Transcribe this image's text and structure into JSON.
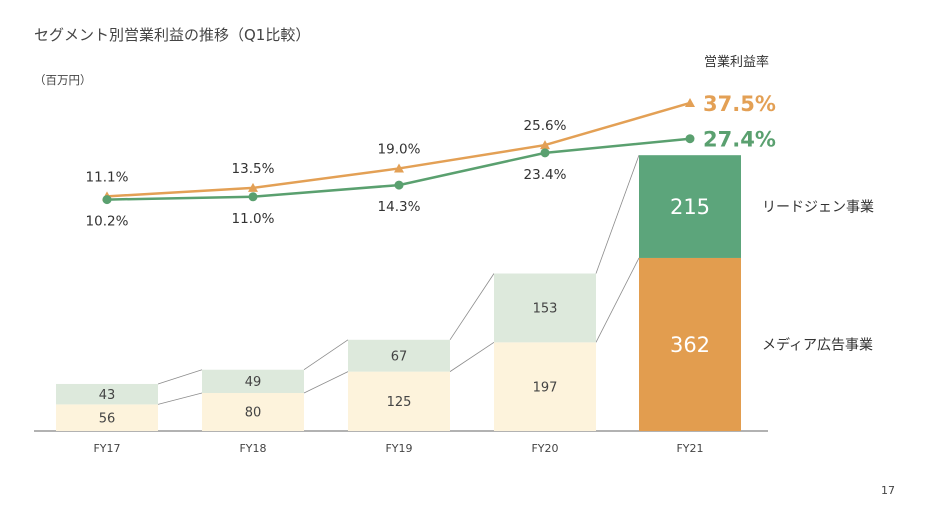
{
  "page": {
    "title": "セグメント別営業利益の推移（Q1比較）",
    "unit": "（百万円）",
    "page_number": "17"
  },
  "colors": {
    "lead_gen": "#5ca57b",
    "media_ad": "#e29d4f",
    "lead_gen_light": "#dde9dc",
    "media_ad_light": "#fdf3dc",
    "connector": "#8c8c8c",
    "margin_line": "#e3a055",
    "lead_gen_line": "#5aa06f"
  },
  "chart_data": {
    "type": "bar",
    "categories": [
      "FY17",
      "FY18",
      "FY19",
      "FY20",
      "FY21"
    ],
    "series": [
      {
        "name": "メディア広告事業",
        "values": [
          56,
          80,
          125,
          197,
          362
        ]
      },
      {
        "name": "リードジェン事業",
        "values": [
          43,
          49,
          67,
          153,
          215
        ]
      }
    ],
    "lines": {
      "title": "営業利益率",
      "series": [
        {
          "values": [
            11.1,
            13.5,
            19.0,
            25.6,
            37.5
          ],
          "labels": [
            "11.1%",
            "13.5%",
            "19.0%",
            "25.6%",
            "37.5%"
          ],
          "marker": "triangle"
        },
        {
          "values": [
            10.2,
            11.0,
            14.3,
            23.4,
            27.4
          ],
          "labels": [
            "10.2%",
            "11.0%",
            "14.3%",
            "23.4%",
            "27.4%"
          ],
          "marker": "circle"
        }
      ]
    },
    "highlight_category": "FY21"
  }
}
